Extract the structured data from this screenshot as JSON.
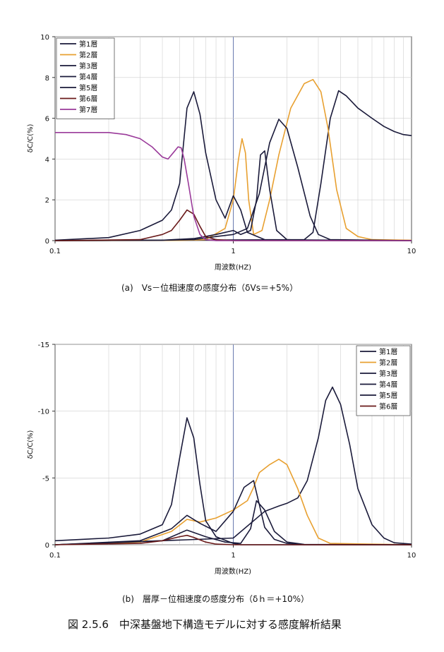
{
  "figure_caption": "図 2.5.6　中深基盤地下構造モデルに対する感度解析結果",
  "colors": {
    "black": "#1a1a3a",
    "orange": "#e8a030",
    "brown": "#6a1a1a",
    "purple": "#9a3a9a",
    "grid": "#cfcfcf",
    "one_line": "#6a7ab0"
  },
  "chart_data": [
    {
      "type": "line",
      "caption": "(a)　Vs－位相速度の感度分布（δVs＝+5%）",
      "xlabel": "周波数(HZ)",
      "ylabel": "δC/C(%)",
      "xscale": "log",
      "xlim": [
        0.1,
        10
      ],
      "ylim": [
        0,
        10
      ],
      "yticks": [
        0,
        2,
        4,
        6,
        8,
        10
      ],
      "ytick_labels": [
        "0",
        "2",
        "4",
        "6",
        "8",
        "10"
      ],
      "xticks": [
        0.1,
        1,
        10
      ],
      "xtick_labels": [
        "0.1",
        "1",
        "10"
      ],
      "legend_position": "top-left",
      "series": [
        {
          "name": "第1層",
          "color": "#1a1a3a",
          "x": [
            0.1,
            2.5,
            2.8,
            3.1,
            3.5,
            3.9,
            4.3,
            5.0,
            6.0,
            7.0,
            8.0,
            9.0,
            10.0
          ],
          "y": [
            0,
            0.05,
            0.4,
            2.8,
            6.0,
            7.35,
            7.1,
            6.5,
            6.0,
            5.6,
            5.35,
            5.2,
            5.15
          ]
        },
        {
          "name": "第2層",
          "color": "#e8a030",
          "x": [
            0.1,
            0.5,
            0.7,
            0.9,
            1.0,
            1.07,
            1.12,
            1.17,
            1.22,
            1.3,
            1.45,
            1.6,
            1.8,
            2.1,
            2.5,
            2.8,
            3.1,
            3.4,
            3.8,
            4.3,
            5.0,
            6.0,
            10.0
          ],
          "y": [
            0,
            0.01,
            0.05,
            0.6,
            2.0,
            4.0,
            5.0,
            4.3,
            2.0,
            0.3,
            0.5,
            2.0,
            4.2,
            6.5,
            7.7,
            7.9,
            7.3,
            5.5,
            2.5,
            0.6,
            0.2,
            0.05,
            0.02
          ]
        },
        {
          "name": "第3層",
          "color": "#1a1a3a",
          "x": [
            0.1,
            0.4,
            0.6,
            0.8,
            1.0,
            1.1,
            1.25,
            1.35,
            1.42,
            1.5,
            1.6,
            1.75,
            2.0,
            2.5,
            10.0
          ],
          "y": [
            0,
            0.02,
            0.1,
            0.3,
            0.5,
            0.3,
            0.5,
            2.0,
            4.2,
            4.4,
            2.5,
            0.5,
            0.05,
            0.01,
            0
          ]
        },
        {
          "name": "第4層",
          "color": "#1a1a3a",
          "x": [
            0.1,
            0.4,
            0.6,
            0.8,
            1.0,
            1.2,
            1.4,
            1.6,
            1.8,
            2.0,
            2.3,
            2.7,
            3.0,
            3.5,
            10.0
          ],
          "y": [
            0,
            0.02,
            0.05,
            0.2,
            0.3,
            0.6,
            2.3,
            4.8,
            5.95,
            5.5,
            3.6,
            1.2,
            0.3,
            0.05,
            0
          ]
        },
        {
          "name": "第5層",
          "color": "#1a1a3a",
          "x": [
            0.1,
            0.2,
            0.3,
            0.4,
            0.45,
            0.5,
            0.55,
            0.6,
            0.65,
            0.7,
            0.8,
            0.9,
            1.0,
            1.1,
            1.2,
            1.5,
            10.0
          ],
          "y": [
            0.02,
            0.15,
            0.5,
            1.0,
            1.5,
            2.8,
            6.5,
            7.3,
            6.2,
            4.3,
            2.0,
            1.1,
            2.2,
            1.5,
            0.4,
            0.05,
            0
          ]
        },
        {
          "name": "第6層",
          "color": "#6a1a1a",
          "x": [
            0.1,
            0.3,
            0.4,
            0.45,
            0.5,
            0.55,
            0.6,
            0.65,
            0.7,
            0.8,
            1.0,
            10.0
          ],
          "y": [
            0,
            0.05,
            0.3,
            0.5,
            1.0,
            1.5,
            1.3,
            0.7,
            0.2,
            0.05,
            0,
            0
          ]
        },
        {
          "name": "第7層",
          "color": "#9a3a9a",
          "x": [
            0.1,
            0.15,
            0.2,
            0.25,
            0.3,
            0.35,
            0.4,
            0.43,
            0.46,
            0.49,
            0.51,
            0.53,
            0.56,
            0.6,
            0.65,
            0.7,
            0.8,
            1.0,
            10.0
          ],
          "y": [
            5.3,
            5.3,
            5.3,
            5.2,
            5.0,
            4.6,
            4.1,
            4.0,
            4.3,
            4.6,
            4.55,
            4.0,
            2.8,
            1.2,
            0.3,
            0.05,
            0,
            0,
            0
          ]
        }
      ]
    },
    {
      "type": "line",
      "caption": "(b)　層厚－位相速度の感度分布（δｈ＝+10%）",
      "xlabel": "周波数(HZ)",
      "ylabel": "δC/C(%)",
      "xscale": "log",
      "xlim": [
        0.1,
        10
      ],
      "ylim": [
        0,
        -15
      ],
      "yticks": [
        0,
        -5,
        -10,
        -15
      ],
      "ytick_labels": [
        "0",
        "-5",
        "-10",
        "-15"
      ],
      "xticks": [
        0.1,
        1,
        10
      ],
      "xtick_labels": [
        "0.1",
        "1",
        "10"
      ],
      "legend_position": "top-right",
      "series": [
        {
          "name": "第1層",
          "color": "#1a1a3a",
          "x": [
            0.1,
            1.0,
            1.5,
            1.8,
            2.0,
            2.3,
            2.6,
            3.0,
            3.3,
            3.6,
            4.0,
            4.5,
            5.0,
            6.0,
            7.0,
            8.0,
            10.0
          ],
          "y": [
            0,
            -0.5,
            -2.5,
            -2.9,
            -3.1,
            -3.5,
            -4.8,
            -8.0,
            -10.8,
            -11.8,
            -10.5,
            -7.5,
            -4.2,
            -1.5,
            -0.5,
            -0.15,
            -0.05
          ]
        },
        {
          "name": "第2層",
          "color": "#e8a030",
          "x": [
            0.1,
            0.3,
            0.45,
            0.55,
            0.65,
            0.8,
            1.0,
            1.2,
            1.3,
            1.4,
            1.6,
            1.8,
            2.0,
            2.3,
            2.6,
            3.0,
            3.5,
            10.0
          ],
          "y": [
            0,
            -0.2,
            -1.0,
            -1.9,
            -1.7,
            -2.0,
            -2.6,
            -3.3,
            -4.3,
            -5.4,
            -6.0,
            -6.4,
            -6.0,
            -4.2,
            -2.2,
            -0.5,
            -0.1,
            0
          ]
        },
        {
          "name": "第3層",
          "color": "#1a1a3a",
          "x": [
            0.1,
            0.4,
            0.55,
            0.7,
            0.9,
            1.1,
            1.25,
            1.35,
            1.5,
            1.7,
            2.0,
            2.5,
            10.0
          ],
          "y": [
            0,
            -0.3,
            -1.1,
            -0.6,
            -0.2,
            -0.1,
            -1.2,
            -3.3,
            -2.6,
            -1.0,
            -0.2,
            -0.02,
            0
          ]
        },
        {
          "name": "第4層",
          "color": "#1a1a3a",
          "x": [
            0.1,
            0.3,
            0.45,
            0.55,
            0.65,
            0.8,
            1.0,
            1.15,
            1.3,
            1.4,
            1.5,
            1.7,
            2.0,
            2.5,
            10.0
          ],
          "y": [
            0,
            -0.3,
            -1.2,
            -2.2,
            -1.6,
            -1.0,
            -2.5,
            -4.3,
            -4.8,
            -3.0,
            -1.3,
            -0.4,
            -0.1,
            0,
            0
          ]
        },
        {
          "name": "第5層",
          "color": "#1a1a3a",
          "x": [
            0.1,
            0.2,
            0.3,
            0.4,
            0.45,
            0.5,
            0.55,
            0.6,
            0.65,
            0.7,
            0.8,
            1.0,
            1.1,
            10.0
          ],
          "y": [
            -0.3,
            -0.5,
            -0.8,
            -1.5,
            -3.0,
            -6.5,
            -9.5,
            -8.0,
            -4.5,
            -1.8,
            -0.6,
            -0.1,
            0,
            0
          ]
        },
        {
          "name": "第6層",
          "color": "#6a1a1a",
          "x": [
            0.1,
            0.3,
            0.4,
            0.5,
            0.55,
            0.6,
            0.7,
            0.8,
            1.0,
            10.0
          ],
          "y": [
            0,
            -0.1,
            -0.3,
            -0.6,
            -0.7,
            -0.55,
            -0.2,
            -0.05,
            0,
            0
          ]
        }
      ]
    }
  ]
}
